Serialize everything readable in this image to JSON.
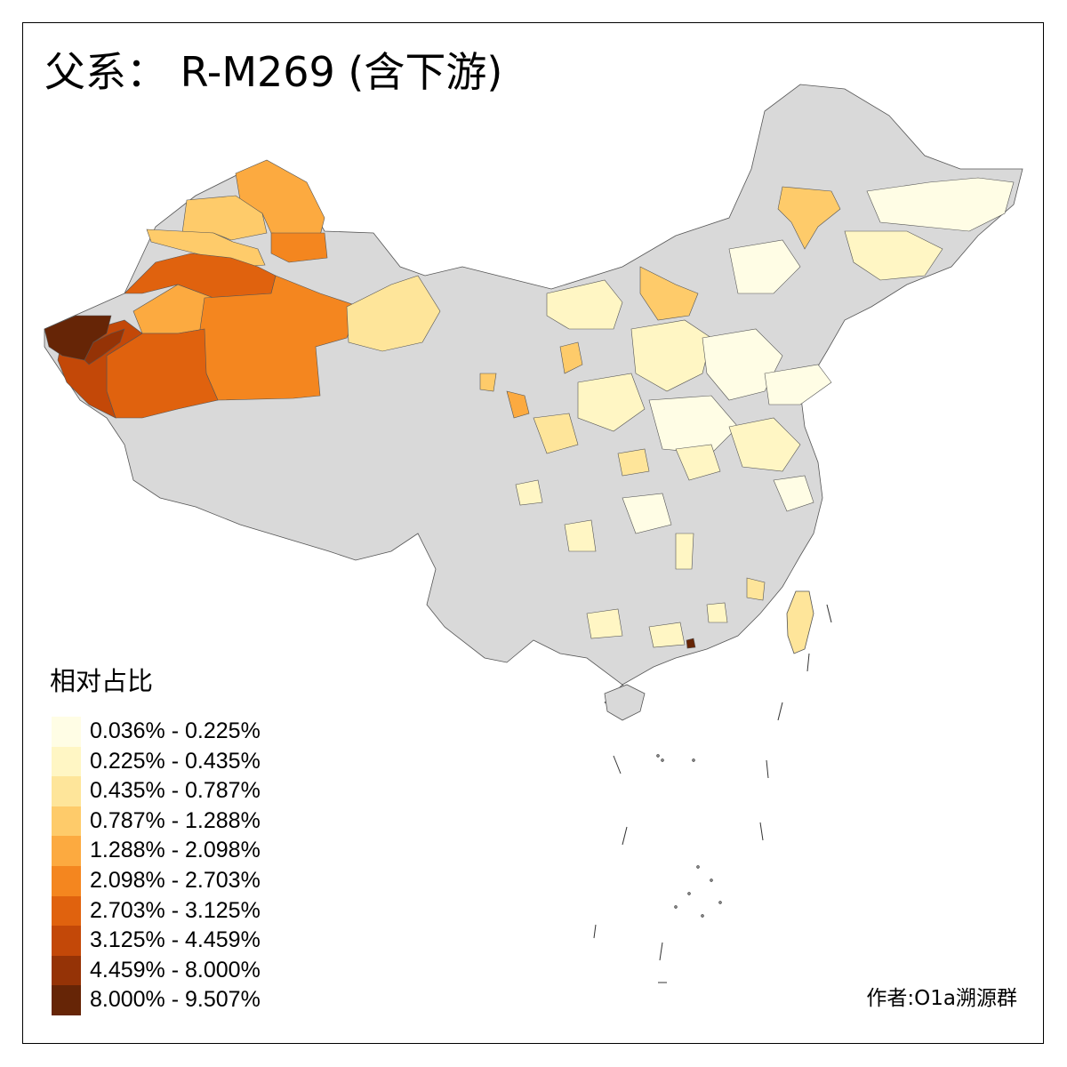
{
  "title": "父系： R-M269 (含下游)",
  "legend": {
    "title": "相对占比",
    "classes": [
      {
        "label": "0.036% - 0.225%",
        "color": "#FFFDE5"
      },
      {
        "label": "0.225% - 0.435%",
        "color": "#FFF6C4"
      },
      {
        "label": "0.435% - 0.787%",
        "color": "#FEE59A"
      },
      {
        "label": "0.787% - 1.288%",
        "color": "#FECB6A"
      },
      {
        "label": "1.288% - 2.098%",
        "color": "#FCAA40"
      },
      {
        "label": "2.098% - 2.703%",
        "color": "#F4861F"
      },
      {
        "label": "2.703% - 3.125%",
        "color": "#E0620E"
      },
      {
        "label": "3.125% - 4.459%",
        "color": "#C34808"
      },
      {
        "label": "4.459% - 8.000%",
        "color": "#953306"
      },
      {
        "label": "8.000% - 9.507%",
        "color": "#662506"
      }
    ]
  },
  "credit": "作者:O1a溯源群",
  "colors": {
    "no_data": "#D9D9D9",
    "border": "#555555",
    "background": "#FFFFFF"
  }
}
